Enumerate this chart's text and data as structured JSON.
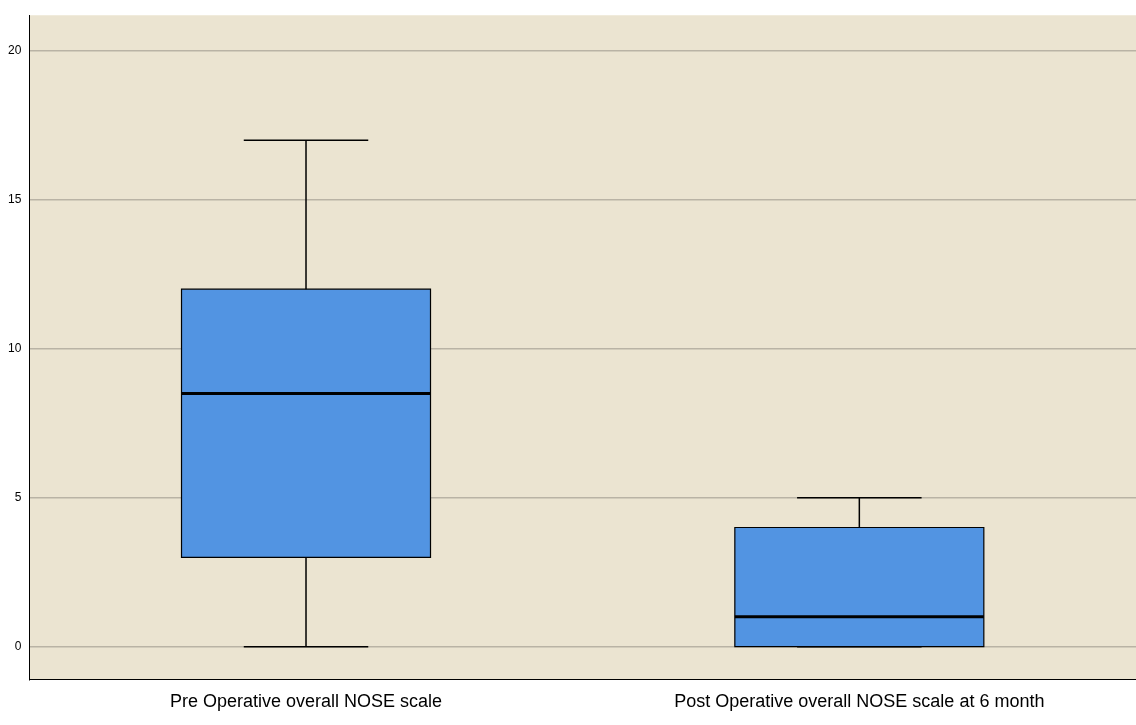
{
  "chart_data": {
    "type": "box",
    "categories": [
      "Pre Operative overall NOSE scale",
      "Post Operative overall NOSE scale at 6 month"
    ],
    "boxes": [
      {
        "low": 0,
        "q1": 3,
        "median": 8.5,
        "q3": 12,
        "high": 17
      },
      {
        "low": 0,
        "q1": 0,
        "median": 1,
        "q3": 4,
        "high": 5
      }
    ],
    "color": "#5294e2",
    "ylim": [
      -1.1,
      21.2
    ],
    "yticks": [
      0,
      5,
      10,
      15,
      20
    ],
    "grid": "y"
  }
}
